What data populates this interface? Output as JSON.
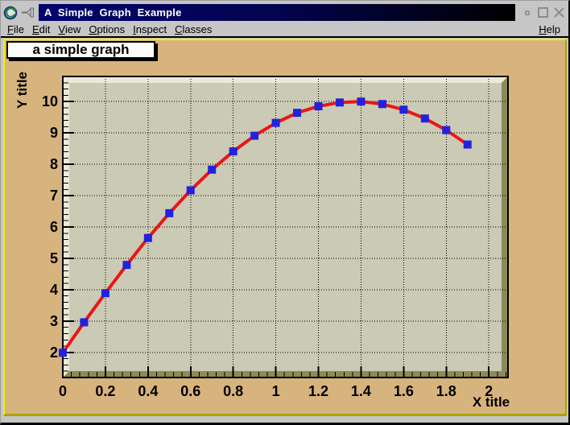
{
  "window": {
    "title": "A Simple Graph Example"
  },
  "menu": {
    "items": [
      {
        "label": "File"
      },
      {
        "label": "Edit"
      },
      {
        "label": "View"
      },
      {
        "label": "Options"
      },
      {
        "label": "Inspect"
      },
      {
        "label": "Classes"
      }
    ],
    "help_label": "Help"
  },
  "chart_data": {
    "type": "line",
    "title": "a simple graph",
    "xlabel": "X title",
    "ylabel": "Y title",
    "x": [
      0,
      0.1,
      0.2,
      0.3,
      0.4,
      0.5,
      0.6,
      0.7,
      0.8,
      0.9,
      1.0,
      1.1,
      1.2,
      1.3,
      1.4,
      1.5,
      1.6,
      1.7,
      1.8,
      1.9
    ],
    "y": [
      1.99,
      2.96,
      3.89,
      4.79,
      5.65,
      6.44,
      7.17,
      7.83,
      8.41,
      8.91,
      9.32,
      9.64,
      9.85,
      9.97,
      10.0,
      9.92,
      9.74,
      9.46,
      9.09,
      8.63
    ],
    "xlim": [
      0,
      2.09
    ],
    "ylim": [
      1.2,
      10.8
    ],
    "x_ticks": {
      "values": [
        0,
        0.2,
        0.4,
        0.6,
        0.8,
        1.0,
        1.2,
        1.4,
        1.6,
        1.8,
        2.0
      ],
      "labels": [
        "0",
        "0.2",
        "0.4",
        "0.6",
        "0.8",
        "1",
        "1.2",
        "1.4",
        "1.6",
        "1.8",
        "2"
      ],
      "minor_step": 0.04
    },
    "y_ticks": {
      "values": [
        2,
        3,
        4,
        5,
        6,
        7,
        8,
        9,
        10
      ],
      "labels": [
        "2",
        "3",
        "4",
        "5",
        "6",
        "7",
        "8",
        "9",
        "10"
      ],
      "minor_step": 0.2
    },
    "grid": "dotted",
    "legend": null
  },
  "colors": {
    "canvas_bg": "#d7b37e",
    "frame_bg": "#cbcab4",
    "bevel_light": "#ece9d8",
    "bevel_dark": "#8c8a58",
    "canvas_border_light": "#f2ee0e",
    "canvas_border_dark": "#aaa600",
    "line_color": "#e81717",
    "marker_color": "#2222dd",
    "grid_color": "#000000",
    "titlebar_navy": "#04046e",
    "ui_gray": "#c6c6c6"
  }
}
